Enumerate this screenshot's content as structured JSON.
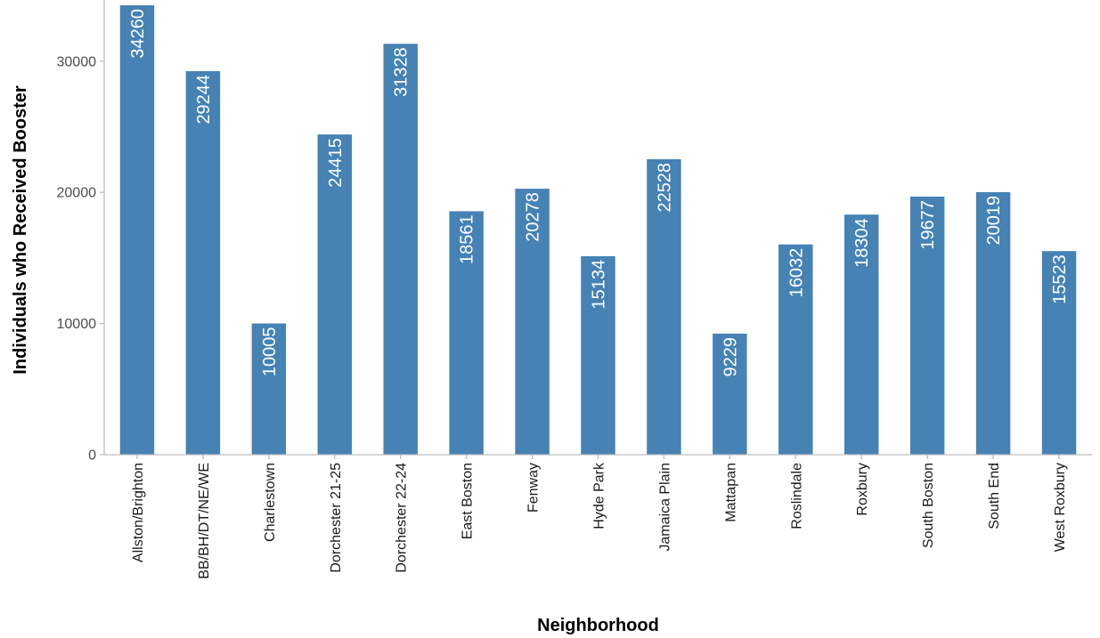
{
  "chart_data": {
    "type": "bar",
    "categories": [
      "Allston/Brighton",
      "BB/BH/DT/NE/WE",
      "Charlestown",
      "Dorchester 21-25",
      "Dorchester 22-24",
      "East Boston",
      "Fenway",
      "Hyde Park",
      "Jamaica Plain",
      "Mattapan",
      "Roslindale",
      "Roxbury",
      "South Boston",
      "South End",
      "West Roxbury"
    ],
    "values": [
      34260,
      29244,
      10005,
      24415,
      31328,
      18561,
      20278,
      15134,
      22528,
      9229,
      16032,
      18304,
      19677,
      20019,
      15523
    ],
    "xlabel": "Neighborhood",
    "ylabel": "Individuals who Received Booster",
    "ylim": [
      0,
      34260
    ],
    "yticks": [
      0,
      10000,
      20000,
      30000
    ],
    "grid": false,
    "bar_color": "#4682b4",
    "bar_label_color": "#ffffff"
  }
}
